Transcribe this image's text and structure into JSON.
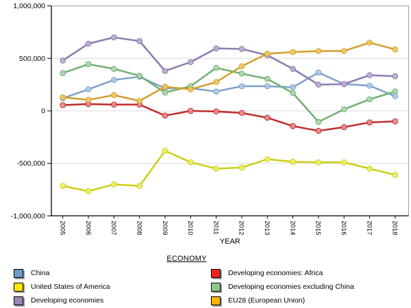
{
  "chart_data": {
    "type": "line",
    "xlabel": "YEAR",
    "legend_title": "ECONOMY",
    "x": [
      2005,
      2006,
      2007,
      2008,
      2009,
      2010,
      2011,
      2012,
      2013,
      2014,
      2015,
      2016,
      2017,
      2018
    ],
    "ylim": [
      -1000000,
      1000000
    ],
    "grid": true,
    "legend_position": "bottom-two-columns",
    "yticks": [
      {
        "label": "1,000,000",
        "value": 1000000
      },
      {
        "label": "500,000",
        "value": 500000
      },
      {
        "label": "0",
        "value": 0
      },
      {
        "label": "-500,000",
        "value": -500000
      },
      {
        "label": "-1,000,000",
        "value": -1000000
      }
    ],
    "gridline_values": [
      500000,
      0,
      -500000
    ],
    "series": [
      {
        "name": "China",
        "color": "#7fa3cb",
        "marker_color": "#afcbe5",
        "swatch_color": "#6c9bc8",
        "values": [
          120000,
          205000,
          295000,
          325000,
          215000,
          215000,
          185000,
          235000,
          235000,
          225000,
          365000,
          255000,
          240000,
          140000
        ]
      },
      {
        "name": "United States of America",
        "color": "#cfcf1b",
        "marker_color": "#efef70",
        "swatch_color": "#ffe800",
        "values": [
          -715000,
          -765000,
          -700000,
          -715000,
          -380000,
          -490000,
          -550000,
          -540000,
          -460000,
          -485000,
          -490000,
          -490000,
          -550000,
          -610000
        ]
      },
      {
        "name": "Developing economies",
        "color": "#8f7db0",
        "marker_color": "#bfaed6",
        "swatch_color": "#9c86b8",
        "values": [
          480000,
          640000,
          700000,
          665000,
          380000,
          465000,
          595000,
          590000,
          530000,
          400000,
          250000,
          255000,
          340000,
          330000
        ]
      },
      {
        "name": "Developing economies: Africa",
        "color": "#c03030",
        "marker_color": "#f09090",
        "swatch_color": "#ee2222",
        "values": [
          55000,
          65000,
          60000,
          60000,
          -45000,
          0,
          -5000,
          -20000,
          -65000,
          -145000,
          -190000,
          -155000,
          -110000,
          -100000
        ]
      },
      {
        "name": "Developing economies excluding China",
        "color": "#74b074",
        "marker_color": "#afd8af",
        "swatch_color": "#8cc88c",
        "values": [
          360000,
          445000,
          400000,
          335000,
          175000,
          235000,
          410000,
          355000,
          305000,
          170000,
          -105000,
          15000,
          110000,
          185000
        ]
      },
      {
        "name": "EU28 (European Union)",
        "color": "#d4a032",
        "marker_color": "#efc964",
        "swatch_color": "#ffb400",
        "values": [
          130000,
          105000,
          150000,
          95000,
          230000,
          205000,
          275000,
          425000,
          545000,
          560000,
          570000,
          570000,
          650000,
          585000
        ]
      }
    ],
    "legend_columns": [
      [
        0,
        1,
        2
      ],
      [
        3,
        4,
        5
      ]
    ]
  }
}
